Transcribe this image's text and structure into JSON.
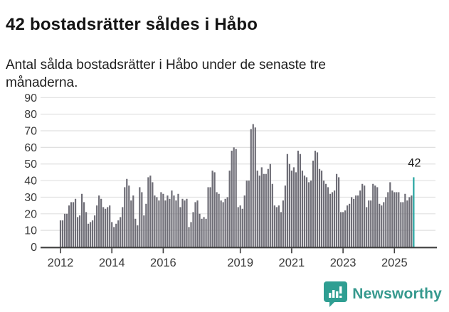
{
  "header": {
    "title": "42 bostadsrätter såldes i Håbo",
    "subtitle": "Antal sålda bostadsrätter i Håbo under de senaste tre månaderna."
  },
  "chart_data": {
    "type": "bar",
    "title": "42 bostadsrätter såldes i Håbo",
    "subtitle": "Antal sålda bostadsrätter i Håbo under de senaste tre månaderna.",
    "unit": "sålda bostadsrätter (rullande 3 månader)",
    "start_month": "2012-01",
    "end_month": "2025-10",
    "values": [
      16,
      16,
      20,
      20,
      25,
      27,
      27,
      29,
      18,
      19,
      32,
      27,
      21,
      14,
      15,
      16,
      19,
      25,
      31,
      29,
      24,
      23,
      24,
      25,
      15,
      12,
      14,
      16,
      18,
      24,
      36,
      41,
      37,
      28,
      31,
      17,
      13,
      36,
      33,
      19,
      26,
      42,
      43,
      39,
      31,
      30,
      28,
      33,
      32,
      28,
      31,
      29,
      34,
      31,
      28,
      32,
      24,
      29,
      28,
      29,
      12,
      15,
      21,
      27,
      28,
      20,
      17,
      18,
      17,
      36,
      36,
      46,
      45,
      33,
      32,
      28,
      27,
      29,
      30,
      46,
      58,
      60,
      59,
      24,
      25,
      23,
      31,
      40,
      40,
      71,
      74,
      72,
      46,
      43,
      48,
      44,
      44,
      47,
      50,
      38,
      25,
      24,
      25,
      21,
      28,
      37,
      56,
      50,
      46,
      48,
      45,
      58,
      56,
      46,
      43,
      42,
      39,
      40,
      52,
      58,
      57,
      47,
      46,
      40,
      38,
      36,
      32,
      33,
      34,
      44,
      42,
      21,
      21,
      22,
      25,
      26,
      30,
      29,
      31,
      31,
      34,
      38,
      37,
      24,
      28,
      28,
      38,
      37,
      36,
      26,
      25,
      27,
      30,
      33,
      39,
      34,
      33,
      33,
      33,
      27,
      27,
      32,
      28,
      30,
      31,
      42
    ],
    "highlight": {
      "index": 165,
      "value": 42,
      "label": "42",
      "color": "#26a5a1"
    },
    "bar_color": "#6e6d76",
    "grid_color": "#e0e0e0",
    "axis_color": "#3f3f3f",
    "label_color": "#3a3a3a",
    "annotation_color": "#222222",
    "x_tick_years": [
      2012,
      2014,
      2016,
      2019,
      2021,
      2023,
      2025
    ],
    "y_ticks": [
      0,
      10,
      20,
      30,
      40,
      50,
      60,
      70,
      80,
      90
    ],
    "ylim": [
      0,
      90
    ],
    "grid": true,
    "legend": "none"
  },
  "footer": {
    "brand": "Newsworthy",
    "brand_color": "#36998e",
    "icon_color": "#2f9e92",
    "logo_icon": "bar-chart-speech-bubble-icon"
  }
}
